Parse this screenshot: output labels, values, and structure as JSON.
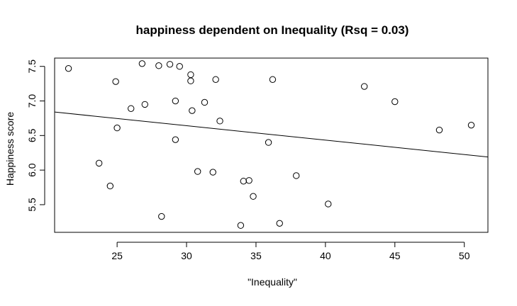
{
  "chart_data": {
    "type": "scatter",
    "title": "happiness dependent on Inequality (Rsq = 0.03)",
    "xlabel": "\"Inequality\"",
    "ylabel": "Happiness score",
    "xlim": [
      20.5,
      51.7
    ],
    "ylim": [
      5.1,
      7.62
    ],
    "x_ticks": [
      25,
      30,
      35,
      40,
      45,
      50
    ],
    "y_ticks": [
      5.5,
      6.0,
      6.5,
      7.0,
      7.5
    ],
    "y_tick_labels": [
      "5.5",
      "6.0",
      "6.5",
      "7.0",
      "7.5"
    ],
    "grid": false,
    "points": [
      {
        "x": 21.5,
        "y": 7.47
      },
      {
        "x": 24.9,
        "y": 7.28
      },
      {
        "x": 26.8,
        "y": 7.54
      },
      {
        "x": 28.0,
        "y": 7.51
      },
      {
        "x": 28.8,
        "y": 7.53
      },
      {
        "x": 29.5,
        "y": 7.5
      },
      {
        "x": 30.3,
        "y": 7.38
      },
      {
        "x": 30.3,
        "y": 7.29
      },
      {
        "x": 32.1,
        "y": 7.31
      },
      {
        "x": 36.2,
        "y": 7.31
      },
      {
        "x": 42.8,
        "y": 7.21
      },
      {
        "x": 45.0,
        "y": 6.99
      },
      {
        "x": 29.2,
        "y": 7.0
      },
      {
        "x": 27.0,
        "y": 6.95
      },
      {
        "x": 26.0,
        "y": 6.89
      },
      {
        "x": 31.3,
        "y": 6.98
      },
      {
        "x": 30.4,
        "y": 6.86
      },
      {
        "x": 32.4,
        "y": 6.71
      },
      {
        "x": 25.0,
        "y": 6.61
      },
      {
        "x": 29.2,
        "y": 6.44
      },
      {
        "x": 35.9,
        "y": 6.4
      },
      {
        "x": 48.2,
        "y": 6.58
      },
      {
        "x": 50.5,
        "y": 6.65
      },
      {
        "x": 23.7,
        "y": 6.1
      },
      {
        "x": 30.8,
        "y": 5.98
      },
      {
        "x": 31.9,
        "y": 5.97
      },
      {
        "x": 37.9,
        "y": 5.92
      },
      {
        "x": 34.1,
        "y": 5.84
      },
      {
        "x": 34.5,
        "y": 5.85
      },
      {
        "x": 24.5,
        "y": 5.77
      },
      {
        "x": 34.8,
        "y": 5.62
      },
      {
        "x": 40.2,
        "y": 5.51
      },
      {
        "x": 28.2,
        "y": 5.33
      },
      {
        "x": 33.9,
        "y": 5.2
      },
      {
        "x": 36.7,
        "y": 5.23
      }
    ],
    "regression_line": {
      "x": [
        20.5,
        51.7
      ],
      "y": [
        6.84,
        6.19
      ]
    }
  }
}
